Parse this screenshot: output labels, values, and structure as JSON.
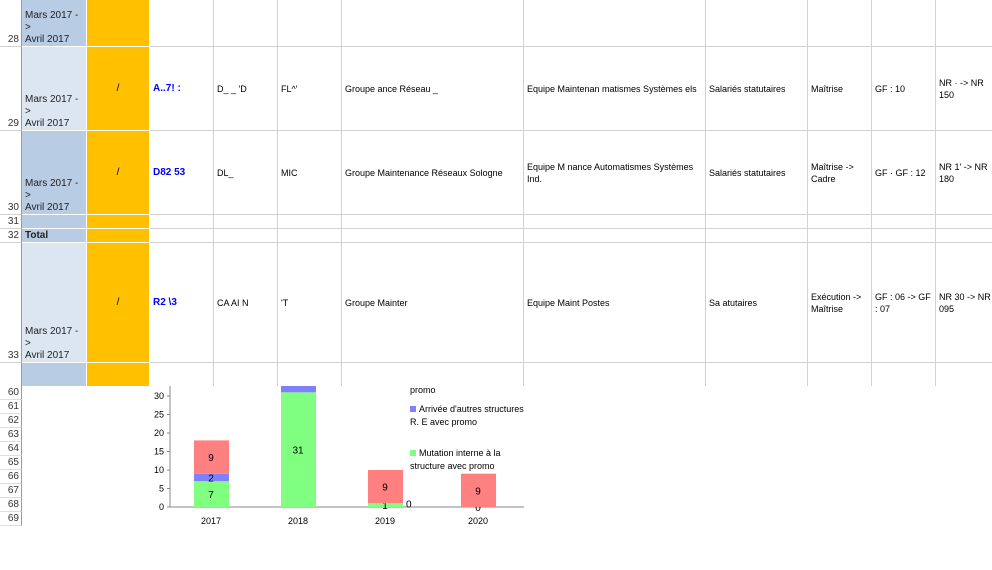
{
  "rows": [
    {
      "num": "28",
      "period": "Mars 2017 -\n>\nAvril 2017",
      "mark": "",
      "id": "",
      "nom": "",
      "prenom": "",
      "groupe": "",
      "equipe": "",
      "statut": "",
      "college": "",
      "gf": "",
      "nr": "",
      "dark": true
    },
    {
      "num": "29",
      "period": "Mars 2017 -\n>\nAvril 2017",
      "mark": "/",
      "id": "A..7! :",
      "nom": "D_  _  'D",
      "prenom": "FL^'",
      "groupe": "Groupe      ance Réseau     _",
      "equipe": "Equipe Maintenan      matismes Systèmes       els",
      "statut": "Salariés statutaires",
      "college": "Maîtrise",
      "gf": "GF : 10",
      "nr": "NR ·   -> NR 150",
      "dark": false
    },
    {
      "num": "30",
      "period": "Mars 2017 -\n>\nAvril 2017",
      "mark": "/",
      "id": "D82 53",
      "nom": "DL_",
      "prenom": "MIC",
      "groupe": "Groupe Maintenance Réseaux Sologne",
      "equipe": "Equipe  M   nance Automatismes Systèmes Ind.",
      "statut": "Salariés statutaires",
      "college": "Maîtrise -> Cadre",
      "gf": "GF  ·  GF : 12",
      "nr": "NR 1'  -> NR 180",
      "dark": true
    },
    {
      "num": "31",
      "period": "",
      "mark": "",
      "id": "",
      "nom": "",
      "prenom": "",
      "groupe": "",
      "equipe": "",
      "statut": "",
      "college": "",
      "gf": "",
      "nr": "",
      "dark": true
    },
    {
      "num": "32",
      "period": "Total",
      "mark": "",
      "id": "",
      "nom": "",
      "prenom": "",
      "groupe": "",
      "equipe": "",
      "statut": "",
      "college": "",
      "gf": "",
      "nr": "",
      "dark": true,
      "bold": true
    },
    {
      "num": "33",
      "period": "Mars 2017 -\n>\nAvril 2017",
      "mark": "/",
      "id": "R2 \\3",
      "nom": "CA     AI N",
      "prenom": "  'T",
      "groupe": "Groupe Mainter       ",
      "equipe": "Equipe Maint            Postes",
      "statut": "Sa      atutaires",
      "college": "Exécution -> Maîtrise",
      "gf": "GF : 06 -> GF : 07",
      "nr": "NR 30 -> NR 095",
      "dark": false
    },
    {
      "num": "",
      "period": "",
      "mark": "",
      "id": "",
      "nom": "",
      "prenom": "",
      "groupe": "",
      "equipe": "",
      "statut": "",
      "college": "",
      "gf": "",
      "nr": "",
      "dark": true
    }
  ],
  "lower_row_numbers": [
    "60",
    "61",
    "62",
    "63",
    "64",
    "65",
    "66",
    "67",
    "68",
    "69"
  ],
  "chart_data": {
    "type": "bar",
    "stacked": true,
    "categories": [
      "2017",
      "2018",
      "2019",
      "2020"
    ],
    "ylim": [
      0,
      33
    ],
    "yticks": [
      "0",
      "5",
      "10",
      "15",
      "20",
      "25",
      "30"
    ],
    "series": [
      {
        "name": "Mutation interne à la structure avec promo",
        "color": "#80ff80",
        "values": [
          7,
          31,
          1,
          0
        ]
      },
      {
        "name": "Arrivée d'autres structures R. E avec promo",
        "color": "#8080ff",
        "values": [
          2,
          2,
          0,
          0
        ]
      },
      {
        "name": "promo",
        "color": "#ff8080",
        "values": [
          9,
          0,
          9,
          9
        ]
      }
    ],
    "data_labels": [
      [
        "7",
        "31",
        "1",
        "0"
      ],
      [
        "2",
        "",
        "0",
        ""
      ],
      [
        "9",
        "",
        "9",
        "9"
      ]
    ],
    "legend_partial": "promo"
  }
}
